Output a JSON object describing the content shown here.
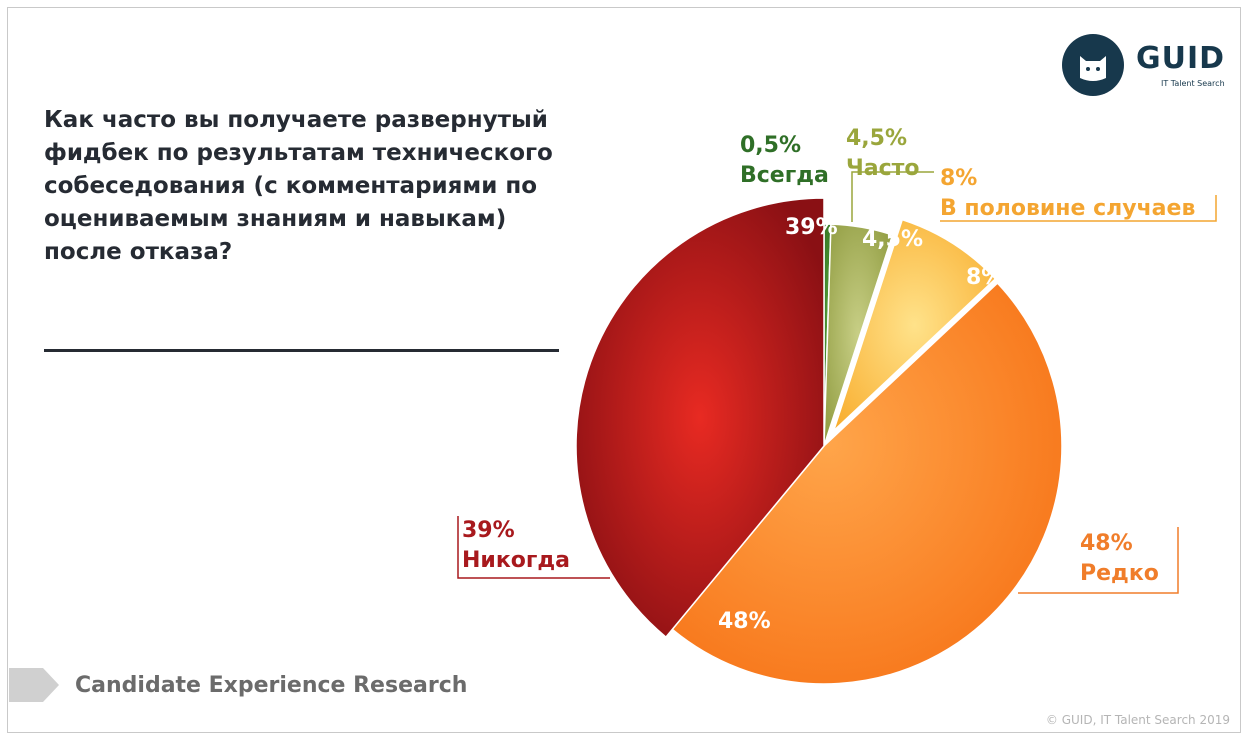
{
  "brand": {
    "name": "GUID",
    "tagline": "IT Talent Search",
    "colors": {
      "navy": "#17384c",
      "text": "#262b33"
    }
  },
  "footer": {
    "label": "Candidate Experience Research",
    "copyright": "© GUID, IT Talent Search 2019"
  },
  "chart_data": {
    "type": "pie",
    "title": "Как часто вы получаете развернутый фидбек по результатам технического собеседования (с комментариями по оцениваемым знаниям и навыкам) после отказа?",
    "slices": [
      {
        "id": "always",
        "name": "Всегда",
        "value": 0.5,
        "label": "0,5%",
        "color": "#3f8a2c",
        "label_color": "#2f6f27"
      },
      {
        "id": "often",
        "name": "Часто",
        "value": 4.5,
        "label": "4,5%",
        "color": "#a3ad55",
        "label_color": "#9aa63c"
      },
      {
        "id": "half",
        "name": "В половине случаев",
        "value": 8,
        "label": "8%",
        "color": "#f8b83a",
        "label_color": "#f4a531"
      },
      {
        "id": "rarely",
        "name": "Редко",
        "value": 48,
        "label": "48%",
        "color": "#fb8228",
        "label_color": "#f07d2a"
      },
      {
        "id": "never",
        "name": "Никогда",
        "value": 39,
        "label": "39%",
        "color": "#c9161a",
        "label_color": "#a8191d"
      }
    ]
  }
}
